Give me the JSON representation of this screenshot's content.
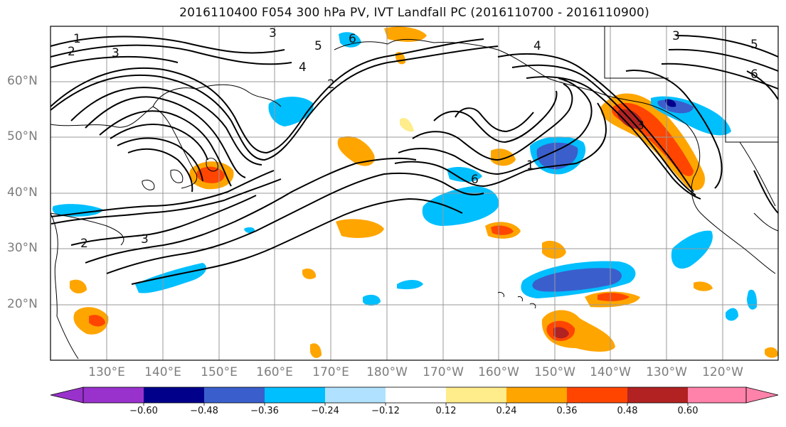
{
  "title": "2016110400 F054 300 hPa PV, IVT Landfall PC (2016110700 - 2016110900)",
  "latitude_labels": [
    "60°N",
    "50°N",
    "40°N",
    "30°N",
    "20°N"
  ],
  "longitude_labels": [
    "130°E",
    "140°E",
    "150°E",
    "160°E",
    "170°E",
    "180°W",
    "170°W",
    "160°W",
    "150°W",
    "140°W",
    "130°W",
    "120°W"
  ],
  "contour_labels": [
    "1",
    "2",
    "3",
    "3",
    "4",
    "5",
    "6",
    "2",
    "4",
    "3",
    "5",
    "6",
    "1",
    "6",
    "3",
    "2",
    "3"
  ],
  "colorbar": {
    "ticks": [
      "−0.60",
      "−0.48",
      "−0.36",
      "−0.24",
      "−0.12",
      "0.12",
      "0.24",
      "0.36",
      "0.48",
      "0.60"
    ],
    "colors": [
      "#9932cc",
      "#00008b",
      "#3a5fcd",
      "#00bfff",
      "#b0e2ff",
      "#ffffff",
      "#ffec8b",
      "#ffa500",
      "#ff4500",
      "#b22222",
      "#ff82ab"
    ]
  },
  "colors": {
    "coastline": "#000000",
    "grid": "#999999",
    "contour": "#000000",
    "label": "#7d7d7d"
  }
}
